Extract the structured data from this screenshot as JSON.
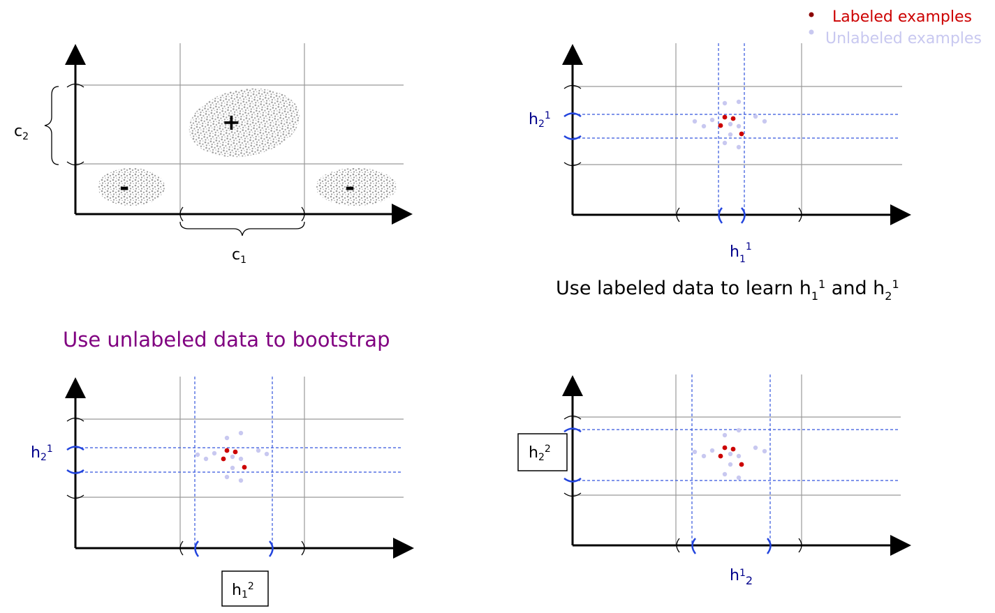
{
  "legend": {
    "labeled": "Labeled examples",
    "unlabeled": "Unlabeled examples",
    "labeled_color": "#cc0000",
    "unlabeled_color": "#c8c8f0",
    "labeled_dot_color": "#8b0000"
  },
  "panel1": {
    "c1": "c",
    "c1_sub": "1",
    "c2": "c",
    "c2_sub": "2",
    "plus": "+",
    "minus": "-"
  },
  "panel2": {
    "h1": "h",
    "h1_sub": "1",
    "h1_sup": "1",
    "h2": "h",
    "h2_sub": "2",
    "h2_sup": "1",
    "caption_pre": "Use labeled data to learn h",
    "caption_mid": " and h",
    "caption_sub1": "1",
    "caption_sup1": "1",
    "caption_sub2": "2",
    "caption_sup2": "1"
  },
  "panel3": {
    "title": "Use unlabeled data to bootstrap",
    "title_color": "#800080",
    "h1": "h",
    "h1_sub": "1",
    "h1_sup": "2",
    "h2": "h",
    "h2_sub": "2",
    "h2_sup": "1"
  },
  "panel4": {
    "h1": "h",
    "h1_sub": "1",
    "h1_sub2": "2",
    "h2": "h",
    "h2_sub": "2",
    "h2_sup": "2"
  },
  "colors": {
    "axis": "#000000",
    "grid": "#999999",
    "dashed": "#3355dd",
    "hlabel": "#00008b",
    "blob": "#b0b0b0"
  }
}
